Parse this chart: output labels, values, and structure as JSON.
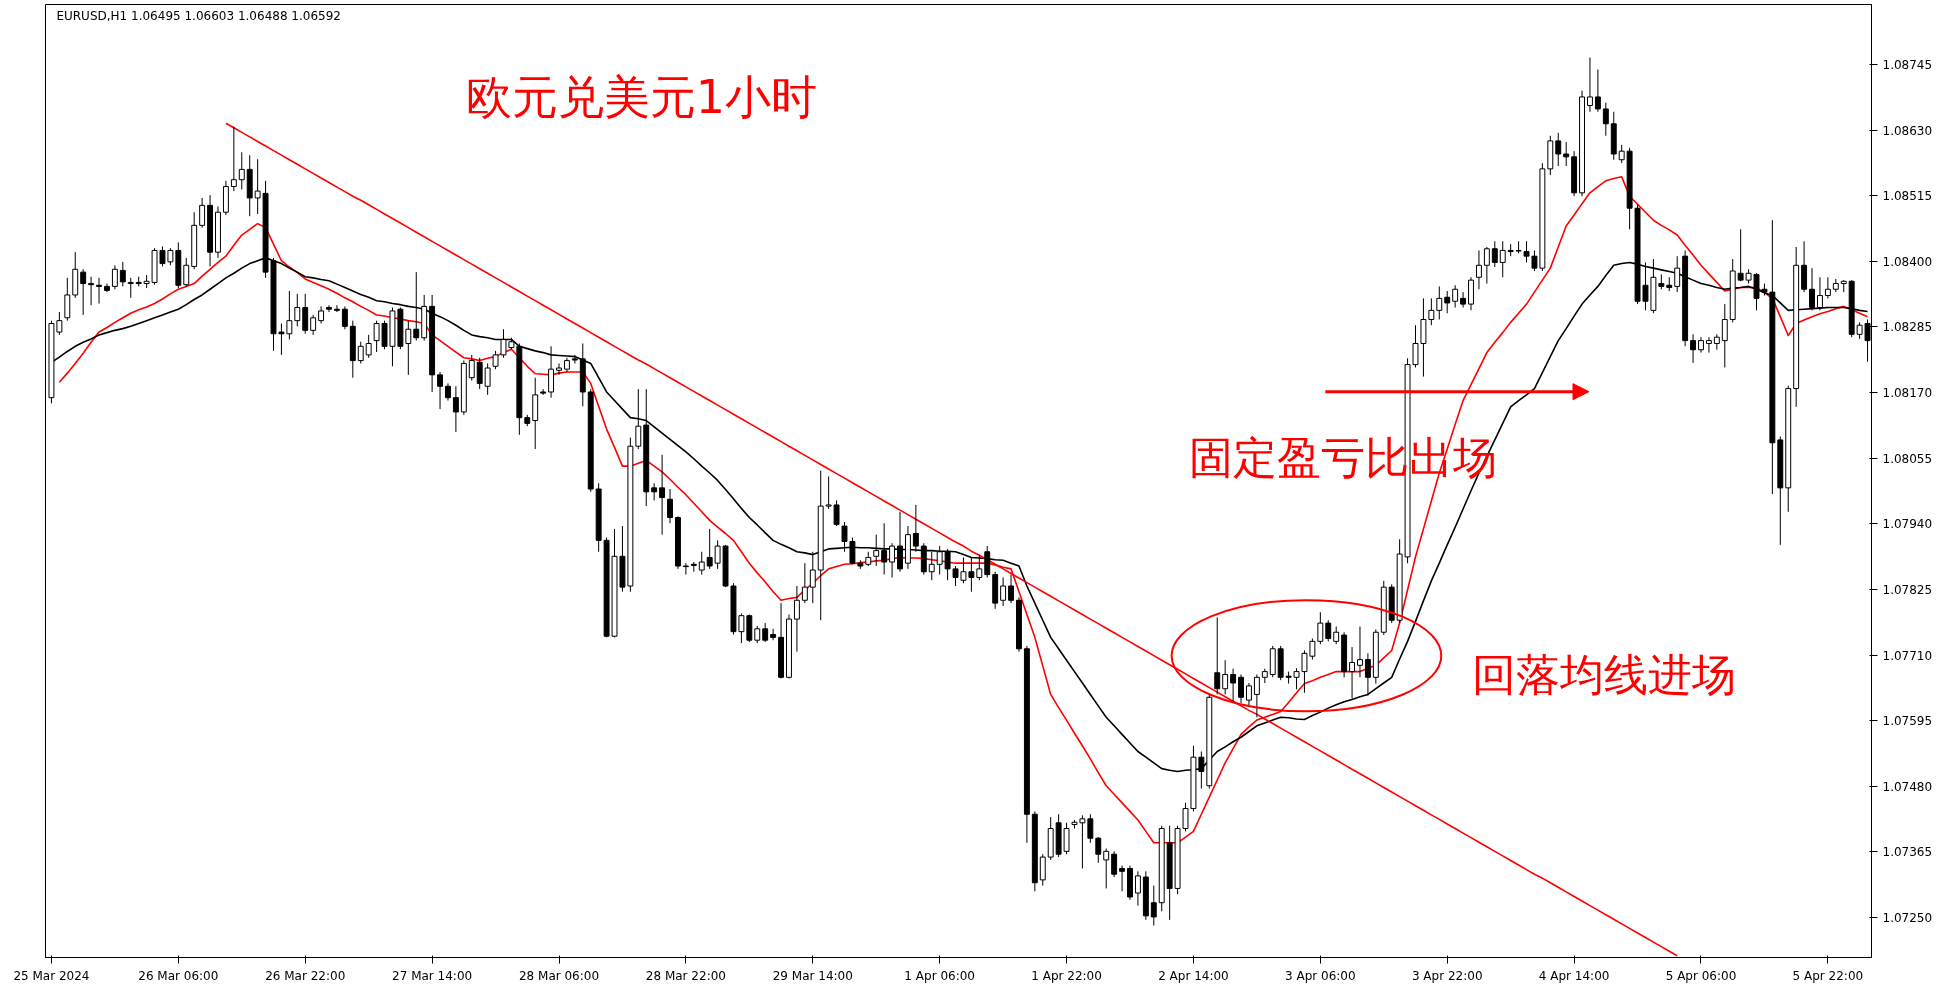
{
  "chart_data": {
    "type": "candlestick",
    "title": "欧元兑美元1小时",
    "subtitle": "EURUSD,H1 1.06495 1.06603 1.06488 1.06592",
    "annotations": [
      "固定盈亏比出场",
      "回落均线进场"
    ],
    "ylim": [
      1.0718,
      1.0885
    ],
    "yticks": [
      {
        "value": 1.0725,
        "label": "1.07250"
      },
      {
        "value": 1.07365,
        "label": "1.07365"
      },
      {
        "value": 1.0748,
        "label": "1.07480"
      },
      {
        "value": 1.07595,
        "label": "1.07595"
      },
      {
        "value": 1.0771,
        "label": "1.07710"
      },
      {
        "value": 1.07825,
        "label": "1.07825"
      },
      {
        "value": 1.0794,
        "label": "1.07940"
      },
      {
        "value": 1.08055,
        "label": "1.08055"
      },
      {
        "value": 1.0817,
        "label": "1.08170"
      },
      {
        "value": 1.08285,
        "label": "1.08285"
      },
      {
        "value": 1.084,
        "label": "1.08400"
      },
      {
        "value": 1.08515,
        "label": "1.08515"
      },
      {
        "value": 1.0863,
        "label": "1.08630"
      },
      {
        "value": 1.08745,
        "label": "1.08745"
      }
    ],
    "color": "#000000",
    "categories": [
      "25 Mar 2024",
      null,
      null,
      null,
      null,
      null,
      null,
      null,
      null,
      null,
      null,
      null,
      null,
      null,
      null,
      null,
      "26 Mar 06:00",
      null,
      null,
      null,
      null,
      null,
      null,
      null,
      null,
      null,
      null,
      null,
      null,
      null,
      null,
      null,
      "26 Mar 22:00",
      null,
      null,
      null,
      null,
      null,
      null,
      null,
      null,
      null,
      null,
      null,
      null,
      null,
      null,
      null,
      "27 Mar 14:00",
      null,
      null,
      null,
      null,
      null,
      null,
      null,
      null,
      null,
      null,
      null,
      null,
      null,
      null,
      null,
      "28 Mar 06:00",
      null,
      null,
      null,
      null,
      null,
      null,
      null,
      null,
      null,
      null,
      null,
      null,
      null,
      null,
      null,
      "28 Mar 22:00",
      null,
      null,
      null,
      null,
      null,
      null,
      null,
      null,
      null,
      null,
      null,
      null,
      null,
      null,
      null,
      "29 Mar 14:00",
      null,
      null,
      null,
      null,
      null,
      null,
      null,
      null,
      null,
      null,
      null,
      null,
      null,
      null,
      null,
      "1 Apr 06:00",
      null,
      null,
      null,
      null,
      null,
      null,
      null,
      null,
      null,
      null,
      null,
      null,
      null,
      null,
      null,
      "1 Apr 22:00",
      null,
      null,
      null,
      null,
      null,
      null,
      null,
      null,
      null,
      null,
      null,
      null,
      null,
      null,
      null,
      "2 Apr 14:00",
      null,
      null,
      null,
      null,
      null,
      null,
      null,
      null,
      null,
      null,
      null,
      null,
      null,
      null,
      null,
      "3 Apr 06:00",
      null,
      null,
      null,
      null,
      null,
      null,
      null,
      null,
      null,
      null,
      null,
      null,
      null,
      null,
      null,
      "3 Apr 22:00",
      null,
      null,
      null,
      null,
      null,
      null,
      null,
      null,
      null,
      null,
      null,
      null,
      null,
      null,
      null,
      "4 Apr 14:00",
      null,
      null,
      null,
      null,
      null,
      null,
      null,
      null,
      null,
      null,
      null,
      null,
      null,
      null,
      null,
      "5 Apr 06:00",
      null,
      null,
      null,
      null,
      null,
      null,
      null,
      null,
      null,
      null,
      null,
      null,
      null,
      null,
      null,
      "5 Apr 22:00",
      null,
      null,
      null,
      null,
      null
    ],
    "ohlc": [
      [
        1.08161,
        1.08296,
        1.08151,
        1.08291
      ],
      [
        1.08276,
        1.08311,
        1.08271,
        1.08296
      ],
      [
        1.08301,
        1.08371,
        1.08296,
        1.08341
      ],
      [
        1.08341,
        1.08416,
        1.08336,
        1.08386
      ],
      [
        1.08381,
        1.08386,
        1.08306,
        1.08361
      ],
      [
        1.08361,
        1.08373,
        1.08323,
        1.08359
      ],
      [
        1.08358,
        1.08371,
        1.08326,
        1.08356
      ],
      [
        1.08356,
        1.08361,
        1.08346,
        1.08349
      ],
      [
        1.08356,
        1.08393,
        1.08351,
        1.08386
      ],
      [
        1.08384,
        1.08399,
        1.08356,
        1.08364
      ],
      [
        1.08361,
        1.08371,
        1.08336,
        1.08363
      ],
      [
        1.08363,
        1.08373,
        1.08356,
        1.08361
      ],
      [
        1.08361,
        1.08376,
        1.08353,
        1.08365
      ],
      [
        1.08363,
        1.08423,
        1.08359,
        1.08419
      ],
      [
        1.08419,
        1.08426,
        1.08391,
        1.08396
      ],
      [
        1.08399,
        1.08423,
        1.08393,
        1.08419
      ],
      [
        1.08419,
        1.08433,
        1.08353,
        1.08358
      ],
      [
        1.08359,
        1.08406,
        1.08356,
        1.08393
      ],
      [
        1.08391,
        1.08486,
        1.08386,
        1.08463
      ],
      [
        1.08463,
        1.08511,
        1.08459,
        1.08498
      ],
      [
        1.08498,
        1.08516,
        1.08391,
        1.08416
      ],
      [
        1.08416,
        1.08496,
        1.08406,
        1.08486
      ],
      [
        1.08486,
        1.08541,
        1.08481,
        1.08531
      ],
      [
        1.08531,
        1.08636,
        1.08523,
        1.08543
      ],
      [
        1.08543,
        1.08591,
        1.08526,
        1.08561
      ],
      [
        1.08561,
        1.08586,
        1.08479,
        1.08511
      ],
      [
        1.08511,
        1.08579,
        1.08483,
        1.08523
      ],
      [
        1.08519,
        1.08541,
        1.08371,
        1.08381
      ],
      [
        1.08401,
        1.08406,
        1.08243,
        1.08273
      ],
      [
        1.08276,
        1.08291,
        1.08236,
        1.08273
      ],
      [
        1.08273,
        1.08348,
        1.08263,
        1.08296
      ],
      [
        1.08296,
        1.08343,
        1.08286,
        1.08319
      ],
      [
        1.08319,
        1.08343,
        1.08273,
        1.08279
      ],
      [
        1.08279,
        1.08306,
        1.08271,
        1.08301
      ],
      [
        1.08296,
        1.08321,
        1.08291,
        1.08313
      ],
      [
        1.08319,
        1.08323,
        1.08311,
        1.08316
      ],
      [
        1.08316,
        1.08323,
        1.08311,
        1.08314
      ],
      [
        1.08316,
        1.08321,
        1.08281,
        1.08286
      ],
      [
        1.08286,
        1.08296,
        1.08196,
        1.08226
      ],
      [
        1.08226,
        1.08259,
        1.08221,
        1.08251
      ],
      [
        1.08236,
        1.08271,
        1.08231,
        1.08256
      ],
      [
        1.08261,
        1.08296,
        1.08241,
        1.08291
      ],
      [
        1.08291,
        1.08296,
        1.08246,
        1.08251
      ],
      [
        1.08251,
        1.08319,
        1.08216,
        1.08313
      ],
      [
        1.08316,
        1.08319,
        1.08246,
        1.08251
      ],
      [
        1.08256,
        1.08296,
        1.08201,
        1.08281
      ],
      [
        1.08281,
        1.08381,
        1.08261,
        1.08266
      ],
      [
        1.08266,
        1.08341,
        1.08261,
        1.08321
      ],
      [
        1.08321,
        1.08341,
        1.08171,
        1.08201
      ],
      [
        1.08201,
        1.08206,
        1.08141,
        1.08181
      ],
      [
        1.08181,
        1.08186,
        1.08156,
        1.08161
      ],
      [
        1.08161,
        1.08181,
        1.08101,
        1.08136
      ],
      [
        1.08136,
        1.08226,
        1.08131,
        1.08221
      ],
      [
        1.08196,
        1.08236,
        1.08191,
        1.08226
      ],
      [
        1.08223,
        1.08231,
        1.08176,
        1.08186
      ],
      [
        1.08181,
        1.08221,
        1.08166,
        1.08213
      ],
      [
        1.08216,
        1.08243,
        1.08211,
        1.08236
      ],
      [
        1.08236,
        1.08281,
        1.08231,
        1.08263
      ],
      [
        1.08249,
        1.08266,
        1.08246,
        1.08259
      ],
      [
        1.08251,
        1.08256,
        1.08096,
        1.08126
      ],
      [
        1.08126,
        1.08131,
        1.08111,
        1.08116
      ],
      [
        1.08121,
        1.08196,
        1.08071,
        1.08166
      ],
      [
        1.08171,
        1.08176,
        1.08166,
        1.08169
      ],
      [
        1.08171,
        1.08251,
        1.08161,
        1.08211
      ],
      [
        1.08209,
        1.08221,
        1.08201,
        1.08213
      ],
      [
        1.08211,
        1.08231,
        1.08206,
        1.08226
      ],
      [
        1.08229,
        1.08236,
        1.08221,
        1.08227
      ],
      [
        1.08229,
        1.08256,
        1.08146,
        1.08171
      ],
      [
        1.08171,
        1.08176,
        1.07996,
        1.08001
      ],
      [
        1.08001,
        1.08011,
        1.07891,
        1.07911
      ],
      [
        1.07911,
        1.07916,
        1.07741,
        1.07743
      ],
      [
        1.07743,
        1.07931,
        1.07741,
        1.07883
      ],
      [
        1.07883,
        1.07936,
        1.07821,
        1.07829
      ],
      [
        1.07831,
        1.08091,
        1.07821,
        1.08076
      ],
      [
        1.08076,
        1.08176,
        1.08071,
        1.08111
      ],
      [
        1.08113,
        1.08176,
        1.07971,
        1.07996
      ],
      [
        1.08003,
        1.08011,
        1.07981,
        1.07996
      ],
      [
        1.08003,
        1.08061,
        1.07921,
        1.07986
      ],
      [
        1.07983,
        1.08001,
        1.07941,
        1.07951
      ],
      [
        1.07951,
        1.07953,
        1.07861,
        1.07866
      ],
      [
        1.07866,
        1.07871,
        1.07851,
        1.07865
      ],
      [
        1.07869,
        1.07873,
        1.07856,
        1.07867
      ],
      [
        1.07859,
        1.07891,
        1.07851,
        1.07873
      ],
      [
        1.07881,
        1.07931,
        1.07861,
        1.07866
      ],
      [
        1.07871,
        1.07911,
        1.07861,
        1.07901
      ],
      [
        1.07901,
        1.07903,
        1.07829,
        1.07831
      ],
      [
        1.07831,
        1.07836,
        1.07746,
        1.07751
      ],
      [
        1.07751,
        1.07783,
        1.07731,
        1.07779
      ],
      [
        1.07779,
        1.07781,
        1.07733,
        1.07736
      ],
      [
        1.07736,
        1.07761,
        1.07731,
        1.07756
      ],
      [
        1.07756,
        1.07766,
        1.07733,
        1.07736
      ],
      [
        1.07746,
        1.07756,
        1.07736,
        1.07741
      ],
      [
        1.07741,
        1.07801,
        1.07669,
        1.07671
      ],
      [
        1.07671,
        1.07781,
        1.07669,
        1.07773
      ],
      [
        1.07773,
        1.07831,
        1.07716,
        1.07806
      ],
      [
        1.07806,
        1.07871,
        1.07801,
        1.07829
      ],
      [
        1.07829,
        1.07891,
        1.07801,
        1.07859
      ],
      [
        1.07859,
        1.08033,
        1.07771,
        1.07971
      ],
      [
        1.07971,
        1.08023,
        1.07966,
        1.07973
      ],
      [
        1.07973,
        1.07981,
        1.07936,
        1.07939
      ],
      [
        1.07936,
        1.07943,
        1.07891,
        1.07909
      ],
      [
        1.07909,
        1.07916,
        1.07869,
        1.07871
      ],
      [
        1.07871,
        1.07876,
        1.07861,
        1.07866
      ],
      [
        1.07869,
        1.07891,
        1.07866,
        1.07881
      ],
      [
        1.07883,
        1.07921,
        1.07866,
        1.07893
      ],
      [
        1.07893,
        1.07941,
        1.07851,
        1.07873
      ],
      [
        1.07873,
        1.07906,
        1.07846,
        1.07901
      ],
      [
        1.07901,
        1.07961,
        1.07856,
        1.07861
      ],
      [
        1.07871,
        1.07936,
        1.07861,
        1.07921
      ],
      [
        1.07923,
        1.07973,
        1.07891,
        1.07901
      ],
      [
        1.07901,
        1.07906,
        1.07851,
        1.07856
      ],
      [
        1.07856,
        1.07891,
        1.07841,
        1.07869
      ],
      [
        1.07869,
        1.07901,
        1.07851,
        1.07891
      ],
      [
        1.07891,
        1.07896,
        1.07841,
        1.07861
      ],
      [
        1.07861,
        1.07866,
        1.07831,
        1.07846
      ],
      [
        1.07841,
        1.07881,
        1.07836,
        1.07856
      ],
      [
        1.07856,
        1.07881,
        1.07821,
        1.07846
      ],
      [
        1.07846,
        1.07886,
        1.07841,
        1.07861
      ],
      [
        1.07891,
        1.07901,
        1.07846,
        1.07851
      ],
      [
        1.07851,
        1.07856,
        1.07791,
        1.07801
      ],
      [
        1.07806,
        1.07846,
        1.07796,
        1.07831
      ],
      [
        1.07831,
        1.07851,
        1.07801,
        1.07806
      ],
      [
        1.07806,
        1.07811,
        1.07716,
        1.07721
      ],
      [
        1.07721,
        1.07726,
        1.07381,
        1.07431
      ],
      [
        1.07431,
        1.07436,
        1.07296,
        1.07311
      ],
      [
        1.07316,
        1.07361,
        1.07306,
        1.07356
      ],
      [
        1.07356,
        1.07426,
        1.07351,
        1.07406
      ],
      [
        1.07416,
        1.07431,
        1.07356,
        1.07361
      ],
      [
        1.07366,
        1.07416,
        1.07361,
        1.07406
      ],
      [
        1.07413,
        1.07421,
        1.07406,
        1.07417
      ],
      [
        1.07416,
        1.07429,
        1.07336,
        1.07423
      ],
      [
        1.07423,
        1.07431,
        1.07381,
        1.07389
      ],
      [
        1.07389,
        1.07391,
        1.07346,
        1.07361
      ],
      [
        1.07351,
        1.07371,
        1.07301,
        1.07366
      ],
      [
        1.07361,
        1.07366,
        1.07321,
        1.07326
      ],
      [
        1.07336,
        1.07341,
        1.07296,
        1.07331
      ],
      [
        1.07336,
        1.07341,
        1.07281,
        1.07286
      ],
      [
        1.07293,
        1.07331,
        1.07271,
        1.07323
      ],
      [
        1.07321,
        1.07331,
        1.07246,
        1.07253
      ],
      [
        1.07276,
        1.07306,
        1.07236,
        1.07251
      ],
      [
        1.07276,
        1.07411,
        1.07261,
        1.07406
      ],
      [
        1.07381,
        1.07411,
        1.07246,
        1.07301
      ],
      [
        1.07301,
        1.07411,
        1.07291,
        1.07406
      ],
      [
        1.07406,
        1.07451,
        1.07401,
        1.07441
      ],
      [
        1.07441,
        1.07551,
        1.07436,
        1.07531
      ],
      [
        1.07531,
        1.07541,
        1.07476,
        1.07506
      ],
      [
        1.07481,
        1.07641,
        1.07476,
        1.07636
      ],
      [
        1.07679,
        1.07776,
        1.07641,
        1.07651
      ],
      [
        1.07651,
        1.07701,
        1.07641,
        1.07676
      ],
      [
        1.07676,
        1.07686,
        1.07626,
        1.07661
      ],
      [
        1.07671,
        1.07676,
        1.07626,
        1.07636
      ],
      [
        1.07631,
        1.07661,
        1.07621,
        1.07656
      ],
      [
        1.07641,
        1.07676,
        1.07601,
        1.07671
      ],
      [
        1.07671,
        1.07686,
        1.07661,
        1.07681
      ],
      [
        1.07676,
        1.07726,
        1.07671,
        1.07721
      ],
      [
        1.07721,
        1.07726,
        1.07666,
        1.07671
      ],
      [
        1.07673,
        1.07681,
        1.0766,
        1.07671
      ],
      [
        1.07671,
        1.07687,
        1.0765,
        1.07681
      ],
      [
        1.07681,
        1.07718,
        1.07644,
        1.07713
      ],
      [
        1.07708,
        1.07739,
        1.07702,
        1.07734
      ],
      [
        1.07734,
        1.07785,
        1.07729,
        1.07766
      ],
      [
        1.07766,
        1.07771,
        1.07734,
        1.07739
      ],
      [
        1.07734,
        1.0776,
        1.07729,
        1.0775
      ],
      [
        1.07745,
        1.0775,
        1.07671,
        1.07681
      ],
      [
        1.07681,
        1.07724,
        1.07634,
        1.07697
      ],
      [
        1.07692,
        1.0776,
        1.07671,
        1.07702
      ],
      [
        1.07702,
        1.07713,
        1.07639,
        1.07671
      ],
      [
        1.07671,
        1.07755,
        1.0766,
        1.0775
      ],
      [
        1.0775,
        1.0784,
        1.07745,
        1.07829
      ],
      [
        1.07829,
        1.07834,
        1.07766,
        1.07771
      ],
      [
        1.07771,
        1.07913,
        1.07766,
        1.07887
      ],
      [
        1.07882,
        1.0823,
        1.07871,
        1.08219
      ],
      [
        1.08219,
        1.08288,
        1.08214,
        1.08256
      ],
      [
        1.08256,
        1.08335,
        1.08198,
        1.08298
      ],
      [
        1.08298,
        1.08335,
        1.08288,
        1.08314
      ],
      [
        1.08314,
        1.08356,
        1.08298,
        1.08335
      ],
      [
        1.08337,
        1.08348,
        1.08309,
        1.08327
      ],
      [
        1.0833,
        1.08358,
        1.08319,
        1.08351
      ],
      [
        1.08335,
        1.08346,
        1.08319,
        1.08325
      ],
      [
        1.08325,
        1.08372,
        1.08314,
        1.08367
      ],
      [
        1.08372,
        1.08419,
        1.08351,
        1.08393
      ],
      [
        1.08393,
        1.08425,
        1.08361,
        1.08422
      ],
      [
        1.08422,
        1.08435,
        1.0839,
        1.08398
      ],
      [
        1.08398,
        1.08435,
        1.08372,
        1.08419
      ],
      [
        1.08419,
        1.0843,
        1.08409,
        1.08417
      ],
      [
        1.08419,
        1.08435,
        1.08414,
        1.08418
      ],
      [
        1.08417,
        1.08435,
        1.08398,
        1.08409
      ],
      [
        1.08409,
        1.08419,
        1.08383,
        1.08388
      ],
      [
        1.08388,
        1.08572,
        1.08383,
        1.08562
      ],
      [
        1.08562,
        1.0862,
        1.08551,
        1.08611
      ],
      [
        1.08611,
        1.08625,
        1.08567,
        1.08588
      ],
      [
        1.08588,
        1.08609,
        1.08567,
        1.08583
      ],
      [
        1.08583,
        1.08593,
        1.08514,
        1.0852
      ],
      [
        1.0852,
        1.08699,
        1.08514,
        1.08688
      ],
      [
        1.08673,
        1.08757,
        1.08662,
        1.08688
      ],
      [
        1.08688,
        1.08736,
        1.08662,
        1.08667
      ],
      [
        1.08667,
        1.08678,
        1.0862,
        1.08641
      ],
      [
        1.08641,
        1.08662,
        1.08578,
        1.08588
      ],
      [
        1.08578,
        1.08604,
        1.08572,
        1.08593
      ],
      [
        1.08593,
        1.08599,
        1.08456,
        1.08493
      ],
      [
        1.08493,
        1.08499,
        1.08325,
        1.0833
      ],
      [
        1.08358,
        1.08398,
        1.08314,
        1.0833
      ],
      [
        1.08314,
        1.08404,
        1.08309,
        1.08372
      ],
      [
        1.08361,
        1.08377,
        1.08351,
        1.08356
      ],
      [
        1.08358,
        1.08372,
        1.08348,
        1.08354
      ],
      [
        1.08356,
        1.08409,
        1.08346,
        1.08388
      ],
      [
        1.08409,
        1.08419,
        1.08251,
        1.08261
      ],
      [
        1.08261,
        1.08272,
        1.08222,
        1.08245
      ],
      [
        1.08245,
        1.08267,
        1.0824,
        1.08261
      ],
      [
        1.08256,
        1.08267,
        1.0824,
        1.08261
      ],
      [
        1.08256,
        1.08272,
        1.08245,
        1.08267
      ],
      [
        1.08261,
        1.08325,
        1.08214,
        1.08298
      ],
      [
        1.08298,
        1.08404,
        1.08293,
        1.08383
      ],
      [
        1.08379,
        1.08456,
        1.08365,
        1.08367
      ],
      [
        1.08367,
        1.08386,
        1.08361,
        1.08379
      ],
      [
        1.08377,
        1.08379,
        1.08314,
        1.08335
      ],
      [
        1.08351,
        1.08361,
        1.0834,
        1.08346
      ],
      [
        1.08346,
        1.08472,
        1.07992,
        1.08082
      ],
      [
        1.08087,
        1.08093,
        1.07903,
        1.08003
      ],
      [
        1.08003,
        1.08182,
        1.07961,
        1.08177
      ],
      [
        1.08177,
        1.08425,
        1.08145,
        1.08393
      ],
      [
        1.08393,
        1.08435,
        1.08346,
        1.08351
      ],
      [
        1.08351,
        1.08388,
        1.08314,
        1.08319
      ],
      [
        1.08319,
        1.08372,
        1.08314,
        1.0834
      ],
      [
        1.0834,
        1.08372,
        1.08335,
        1.08351
      ],
      [
        1.08351,
        1.08369,
        1.08346,
        1.08361
      ],
      [
        1.08361,
        1.08367,
        1.08346,
        1.08365
      ],
      [
        1.08365,
        1.08367,
        1.08267,
        1.08272
      ],
      [
        1.08272,
        1.08293,
        1.08264,
        1.08288
      ],
      [
        1.08291,
        1.08298,
        1.08224,
        1.08261
      ]
    ],
    "series": [
      {
        "type": "line",
        "color": "#ff0000",
        "values": [
          null,
          1.08188,
          1.08204,
          1.08221,
          1.08239,
          1.08258,
          1.08276,
          1.08284,
          1.08293,
          1.08301,
          1.08309,
          1.08315,
          1.0832,
          1.08326,
          1.08334,
          1.08343,
          1.08351,
          1.08356,
          1.08361,
          1.08374,
          1.08386,
          1.08398,
          1.08409,
          1.08428,
          1.08446,
          1.08456,
          1.08466,
          1.08459,
          1.0843,
          1.08401,
          1.0839,
          1.0838,
          1.08369,
          1.08363,
          1.08357,
          1.08351,
          1.08344,
          1.08336,
          1.08329,
          1.08321,
          1.08314,
          1.08306,
          1.08304,
          1.08301,
          1.08299,
          1.08296,
          1.08294,
          1.08291,
          1.08271,
          1.08261,
          1.08251,
          1.08241,
          1.08231,
          1.08229,
          1.08226,
          1.0823,
          1.08233,
          1.0824,
          1.08246,
          1.08231,
          1.08216,
          1.08203,
          1.08202,
          1.08201,
          1.08204,
          1.08206,
          1.08206,
          1.08206,
          1.08186,
          1.08146,
          1.08106,
          1.08074,
          1.08041,
          1.08041,
          1.08046,
          1.08051,
          1.08041,
          1.08031,
          1.08018,
          1.08004,
          1.07991,
          1.07976,
          1.07961,
          1.07946,
          1.07934,
          1.07923,
          1.07911,
          1.07891,
          1.07871,
          1.07854,
          1.07838,
          1.07821,
          1.07806,
          1.07809,
          1.07811,
          1.07824,
          1.07836,
          1.07849,
          1.07861,
          1.07865,
          1.07869,
          1.0787,
          1.07872,
          1.07873,
          1.07875,
          1.07876,
          1.07879,
          1.07881,
          1.0788,
          1.0788,
          1.07879,
          1.07877,
          1.07875,
          1.07873,
          1.07871,
          1.07871,
          1.07871,
          1.07871,
          1.07871,
          1.07868,
          1.07864,
          1.07861,
          1.07821,
          1.07781,
          1.07741,
          1.07691,
          1.07641,
          1.07618,
          1.07596,
          1.07573,
          1.07551,
          1.07528,
          1.07504,
          1.07481,
          1.07466,
          1.07451,
          1.07436,
          1.07421,
          1.07401,
          1.07381,
          1.07381,
          1.07381,
          1.07381,
          1.07391,
          1.07401,
          1.07431,
          1.07461,
          1.07491,
          1.07521,
          1.07546,
          1.07571,
          1.07584,
          1.07596,
          1.07601,
          1.07606,
          1.07611,
          1.07627,
          1.07644,
          1.0766,
          1.07665,
          1.07671,
          1.07676,
          1.07681,
          1.07681,
          1.07681,
          1.07681,
          1.07687,
          1.07692,
          1.07705,
          1.07718,
          1.07766,
          1.07824,
          1.07882,
          1.07931,
          1.0798,
          1.08029,
          1.08071,
          1.08114,
          1.08156,
          1.08184,
          1.08212,
          1.0824,
          1.08258,
          1.08275,
          1.08293,
          1.08309,
          1.08325,
          1.08346,
          1.08367,
          1.08388,
          1.08425,
          1.08462,
          1.08481,
          1.08501,
          1.0852,
          1.08531,
          1.08541,
          1.08545,
          1.08548,
          1.08514,
          1.085,
          1.08486,
          1.08472,
          1.08463,
          1.08455,
          1.08446,
          1.08428,
          1.08411,
          1.08393,
          1.08378,
          1.08363,
          1.08348,
          1.08351,
          1.08354,
          1.08354,
          1.08354,
          1.08345,
          1.08335,
          1.08303,
          1.0827,
          1.08291,
          1.08297,
          1.08303,
          1.08308,
          1.08312,
          1.08317,
          1.08321,
          1.08315,
          1.08309,
          1.08303
        ]
      },
      {
        "type": "line",
        "color": "#000000",
        "values": [
          1.08223,
          1.08232,
          1.08242,
          1.08251,
          1.08258,
          1.08264,
          1.08271,
          1.08275,
          1.08279,
          1.08282,
          1.08286,
          1.08291,
          1.08296,
          1.08301,
          1.08306,
          1.08311,
          1.08316,
          1.08324,
          1.08333,
          1.08341,
          1.08351,
          1.08361,
          1.08371,
          1.08379,
          1.08388,
          1.08396,
          1.08401,
          1.08406,
          1.08401,
          1.08396,
          1.08388,
          1.08381,
          1.08373,
          1.08371,
          1.08368,
          1.08366,
          1.0836,
          1.08354,
          1.08348,
          1.08342,
          1.08337,
          1.08331,
          1.08329,
          1.08326,
          1.08324,
          1.08321,
          1.08319,
          1.08316,
          1.08309,
          1.08303,
          1.08296,
          1.08288,
          1.08279,
          1.08271,
          1.08268,
          1.08266,
          1.08263,
          1.08263,
          1.08263,
          1.08251,
          1.08247,
          1.08243,
          1.0824,
          1.08236,
          1.08235,
          1.08234,
          1.08233,
          1.08227,
          1.08221,
          1.08196,
          1.08171,
          1.08156,
          1.08141,
          1.08126,
          1.08124,
          1.08121,
          1.0811,
          1.08099,
          1.08088,
          1.08077,
          1.08066,
          1.08054,
          1.08041,
          1.08029,
          1.08016,
          1.08,
          1.07984,
          1.07967,
          1.07951,
          1.07938,
          1.07924,
          1.07911,
          1.07904,
          1.07898,
          1.07891,
          1.07889,
          1.07886,
          1.07891,
          1.07896,
          1.07897,
          1.07898,
          1.07899,
          1.07898,
          1.07898,
          1.07897,
          1.07896,
          1.07896,
          1.07895,
          1.07895,
          1.07894,
          1.07893,
          1.07893,
          1.07892,
          1.07892,
          1.07891,
          1.07886,
          1.07881,
          1.0788,
          1.07879,
          1.07877,
          1.07876,
          1.07871,
          1.07866,
          1.07831,
          1.07801,
          1.07771,
          1.07741,
          1.07721,
          1.07701,
          1.07681,
          1.07661,
          1.07641,
          1.07621,
          1.07601,
          1.07586,
          1.07571,
          1.07556,
          1.07541,
          1.07531,
          1.07521,
          1.07511,
          1.07508,
          1.07506,
          1.07508,
          1.07509,
          1.07511,
          1.07526,
          1.07541,
          1.07549,
          1.07558,
          1.07566,
          1.07576,
          1.07586,
          1.07591,
          1.07596,
          1.07601,
          1.076,
          1.07598,
          1.07597,
          1.07604,
          1.0761,
          1.07617,
          1.07623,
          1.07628,
          1.07632,
          1.07637,
          1.07641,
          1.07651,
          1.07661,
          1.07671,
          1.07703,
          1.07734,
          1.07769,
          1.07805,
          1.0784,
          1.07871,
          1.07903,
          1.07934,
          1.07966,
          1.07998,
          1.08029,
          1.08058,
          1.08087,
          1.08116,
          1.08145,
          1.08156,
          1.08166,
          1.08177,
          1.08205,
          1.08233,
          1.08261,
          1.08282,
          1.08304,
          1.08325,
          1.08341,
          1.08356,
          1.08375,
          1.08393,
          1.08396,
          1.08398,
          1.08395,
          1.08391,
          1.08388,
          1.08385,
          1.08382,
          1.08379,
          1.08373,
          1.08367,
          1.08361,
          1.08358,
          1.08354,
          1.08351,
          1.08353,
          1.08354,
          1.08356,
          1.08351,
          1.08345,
          1.0834,
          1.08327,
          1.08314,
          1.08315,
          1.08316,
          1.08317,
          1.08318,
          1.08319,
          1.08319,
          1.08319,
          1.08317,
          1.08314,
          1.08312
        ]
      },
      {
        "type": "line",
        "color": "#ff0000",
        "values": [
          null,
          null,
          null,
          null,
          null,
          null,
          null,
          null,
          null,
          null,
          null,
          null,
          null,
          null,
          null,
          null,
          null,
          null,
          null,
          null,
          null,
          null,
          1.08642,
          1.08634,
          1.08626,
          1.08618,
          1.0861,
          1.08602,
          1.08594,
          1.08586,
          1.08578,
          1.0857,
          1.08562,
          1.08554,
          1.08546,
          1.08538,
          1.0853,
          1.08522,
          1.08514,
          1.08507,
          1.08499,
          1.08491,
          1.08483,
          1.08475,
          1.08467,
          1.08459,
          1.08451,
          1.08443,
          1.08435,
          1.08427,
          1.08419,
          1.08411,
          1.08403,
          1.08395,
          1.08387,
          1.08379,
          1.08371,
          1.08363,
          1.08355,
          1.08347,
          1.08339,
          1.08331,
          1.08323,
          1.08315,
          1.08307,
          1.08299,
          1.08291,
          1.08283,
          1.08275,
          1.08267,
          1.08259,
          1.08251,
          1.08243,
          1.08235,
          1.08227,
          1.0822,
          1.08212,
          1.08204,
          1.08196,
          1.08188,
          1.0818,
          1.08172,
          1.08164,
          1.08156,
          1.08148,
          1.0814,
          1.08132,
          1.08124,
          1.08116,
          1.08108,
          1.081,
          1.08092,
          1.08084,
          1.08076,
          1.08068,
          1.0806,
          1.08052,
          1.08044,
          1.08036,
          1.08028,
          1.0802,
          1.08012,
          1.08004,
          1.07996,
          1.07988,
          1.0798,
          1.07972,
          1.07964,
          1.07956,
          1.07948,
          1.0794,
          1.07932,
          1.07924,
          1.07916,
          1.07908,
          1.07901,
          1.07892,
          1.07885,
          1.07877,
          1.07869,
          1.07861,
          1.07853,
          1.07845,
          1.07837,
          1.07829,
          1.07821,
          1.07813,
          1.07805,
          1.07797,
          1.07789,
          1.07781,
          1.07773,
          1.07765,
          1.07757,
          1.07749,
          1.07741,
          1.07733,
          1.07725,
          1.07717,
          1.07709,
          1.07701,
          1.07693,
          1.07685,
          1.07677,
          1.07669,
          1.07661,
          1.07653,
          1.07645,
          1.07637,
          1.07629,
          1.07621,
          1.07613,
          1.07606,
          1.07598,
          1.0759,
          1.07582,
          1.07574,
          1.07566,
          1.07558,
          1.0755,
          1.07542,
          1.07534,
          1.07526,
          1.07518,
          1.0751,
          1.07502,
          1.07494,
          1.07486,
          1.07478,
          1.0747,
          1.07462,
          1.07454,
          1.07446,
          1.07438,
          1.0743,
          1.07422,
          1.07414,
          1.07406,
          1.07398,
          1.0739,
          1.07382,
          1.07374,
          1.07366,
          1.07358,
          1.0735,
          1.07342,
          1.07334,
          1.07326,
          1.07319,
          1.07311,
          1.07303,
          1.07295,
          1.07287,
          1.07279,
          1.07271,
          1.07263,
          1.07255,
          1.07247,
          1.07239,
          1.07231,
          1.07223,
          1.07215,
          1.07207,
          1.07199,
          1.07191,
          1.07183,
          null,
          null,
          null,
          null,
          null,
          null,
          null,
          null,
          null,
          null,
          null,
          null,
          null,
          null,
          null,
          null,
          null,
          null,
          null,
          null,
          null,
          null,
          null,
          null
        ]
      }
    ]
  }
}
